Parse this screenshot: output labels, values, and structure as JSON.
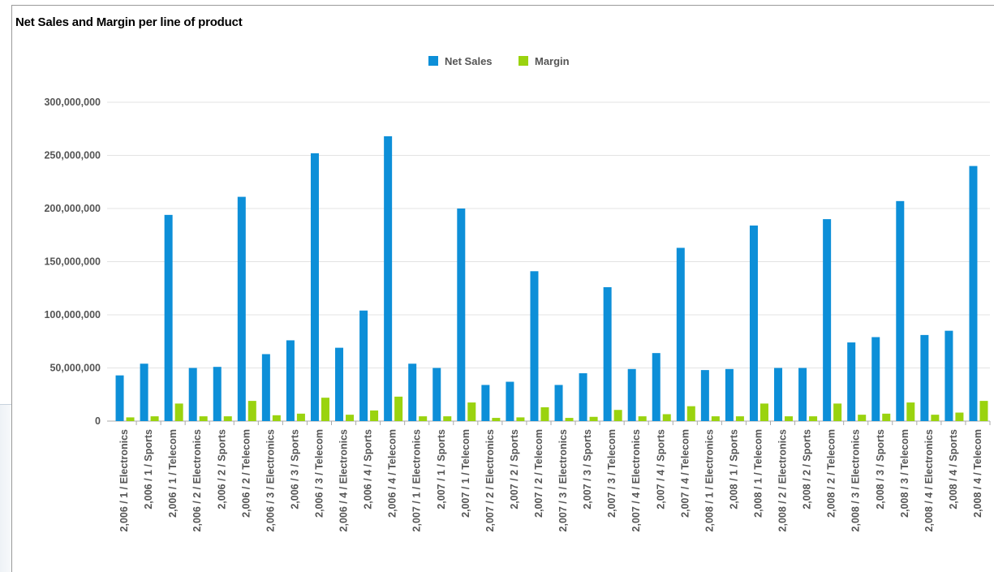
{
  "chart_data": {
    "type": "bar",
    "title": "Net Sales and Margin per line of product",
    "xlabel": "",
    "ylabel": "",
    "ylim": [
      0,
      300000000
    ],
    "yticks": [
      0,
      50000000,
      100000000,
      150000000,
      200000000,
      250000000,
      300000000
    ],
    "ytick_labels": [
      "0",
      "50,000,000",
      "100,000,000",
      "150,000,000",
      "200,000,000",
      "250,000,000",
      "300,000,000"
    ],
    "grid": true,
    "legend": "top-center",
    "categories": [
      "2,006 / 1 / Electronics",
      "2,006 / 1 / Sports",
      "2,006 / 1 / Telecom",
      "2,006 / 2 / Electronics",
      "2,006 / 2 / Sports",
      "2,006 / 2 / Telecom",
      "2,006 / 3 / Electronics",
      "2,006 / 3 / Sports",
      "2,006 / 3 / Telecom",
      "2,006 / 4 / Electronics",
      "2,006 / 4 / Sports",
      "2,006 / 4 / Telecom",
      "2,007 / 1 / Electronics",
      "2,007 / 1 / Sports",
      "2,007 / 1 / Telecom",
      "2,007 / 2 / Electronics",
      "2,007 / 2 / Sports",
      "2,007 / 2 / Telecom",
      "2,007 / 3 / Electronics",
      "2,007 / 3 / Sports",
      "2,007 / 3 / Telecom",
      "2,007 / 4 / Electronics",
      "2,007 / 4 / Sports",
      "2,007 / 4 / Telecom",
      "2,008 / 1 / Electronics",
      "2,008 / 1 / Sports",
      "2,008 / 1 / Telecom",
      "2,008 / 2 / Electronics",
      "2,008 / 2 / Sports",
      "2,008 / 2 / Telecom",
      "2,008 / 3 / Electronics",
      "2,008 / 3 / Sports",
      "2,008 / 3 / Telecom",
      "2,008 / 4 / Electronics",
      "2,008 / 4 / Sports",
      "2,008 / 4 / Telecom"
    ],
    "series": [
      {
        "name": "Net Sales",
        "color": "#0d8fd8",
        "values": [
          43000000,
          54000000,
          194000000,
          50000000,
          51000000,
          211000000,
          63000000,
          76000000,
          252000000,
          69000000,
          104000000,
          268000000,
          54000000,
          50000000,
          200000000,
          34000000,
          37000000,
          141000000,
          34000000,
          45000000,
          126000000,
          49000000,
          64000000,
          163000000,
          48000000,
          49000000,
          184000000,
          50000000,
          50000000,
          190000000,
          74000000,
          79000000,
          207000000,
          81000000,
          85000000,
          240000000
        ]
      },
      {
        "name": "Margin",
        "color": "#9ad30f",
        "values": [
          3500000,
          4500000,
          16500000,
          4500000,
          4500000,
          19000000,
          5500000,
          7000000,
          22000000,
          6000000,
          10000000,
          23000000,
          4500000,
          4500000,
          17500000,
          3000000,
          3500000,
          13000000,
          3000000,
          4000000,
          10500000,
          4500000,
          6500000,
          14000000,
          4500000,
          4500000,
          16500000,
          4500000,
          4500000,
          16500000,
          6000000,
          7000000,
          17500000,
          6000000,
          8000000,
          19000000
        ]
      }
    ]
  }
}
